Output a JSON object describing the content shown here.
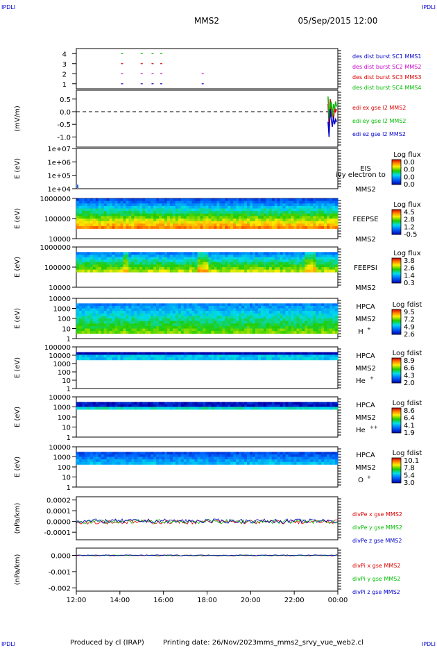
{
  "header": {
    "corner_tl": "IPDLI",
    "corner_tr": "IPDLI",
    "corner_bl": "IPDLI",
    "corner_br": "IPDLI",
    "spacecraft": "MMS2",
    "datetime": "05/Sep/2015 12:00"
  },
  "footer": {
    "produced_by": "Produced by cl (IRAP)",
    "printing_date": "Printing date: 26/Nov/2023",
    "script_name": "mms_mms2_srvy_vue_web2.cl"
  },
  "colors": {
    "red": "#dd0000",
    "green": "#00bb00",
    "blue": "#0000cc",
    "magenta": "#cc00cc"
  },
  "chart_data": [
    {
      "type": "scatter",
      "id": "des-dist-burst",
      "yticks": [
        "1",
        "2",
        "3",
        "4"
      ],
      "ylim": [
        0.5,
        4.5
      ],
      "series": [
        {
          "name": "des dist burst SC1 MMS1",
          "color": "#0000cc",
          "y": 1,
          "x": [
            14.1,
            15.0,
            15.5,
            15.9,
            17.8
          ]
        },
        {
          "name": "des dist burst SC2 MMS2",
          "color": "#cc00cc",
          "y": 2,
          "x": [
            14.1,
            15.0,
            15.5,
            15.9,
            17.8
          ]
        },
        {
          "name": "des dist burst SC3 MMS3",
          "color": "#dd0000",
          "y": 3,
          "x": [
            14.1,
            15.0,
            15.5,
            15.9
          ]
        },
        {
          "name": "des dist burst SC4 MMS4",
          "color": "#00bb00",
          "y": 4,
          "x": [
            14.1,
            15.0,
            15.5,
            15.9
          ]
        }
      ]
    },
    {
      "type": "line",
      "id": "edi-e",
      "ylabel": "(mV/m)",
      "yticks": [
        "0.5",
        "0.0",
        "-0.5",
        "-1.0"
      ],
      "ytick_values": [
        0.5,
        0.0,
        -0.5,
        -1.0
      ],
      "ylim": [
        -1.4,
        0.85
      ],
      "series": [
        {
          "name": "edi ex gse l2 MMS2",
          "color": "#dd0000",
          "x": [
            23.55,
            23.6,
            23.65,
            23.7,
            23.75,
            23.8,
            23.85,
            23.9,
            23.95
          ],
          "y": [
            0.3,
            -0.6,
            0.5,
            -0.2,
            0.1,
            -0.4,
            0.2,
            0.0,
            0.1
          ]
        },
        {
          "name": "edi ey gse l2 MMS2",
          "color": "#00bb00",
          "x": [
            23.55,
            23.6,
            23.65,
            23.7,
            23.75,
            23.8,
            23.85,
            23.9,
            23.95
          ],
          "y": [
            0.6,
            -0.3,
            0.2,
            0.4,
            -0.2,
            0.3,
            0.1,
            0.4,
            0.2
          ]
        },
        {
          "name": "edi ez gse l2 MMS2",
          "color": "#0000cc",
          "x": [
            23.55,
            23.6,
            23.65,
            23.7,
            23.75,
            23.8,
            23.85,
            23.9,
            23.95
          ],
          "y": [
            -0.4,
            -1.0,
            0.1,
            -0.3,
            -0.6,
            -0.2,
            -0.5,
            -0.3,
            -0.4
          ]
        }
      ]
    },
    {
      "type": "heatmap",
      "id": "eis",
      "ylabel": "E (eV)",
      "yticks": [
        "1e+07",
        "1e+06",
        "1e+05",
        "1e+04"
      ],
      "instrument": [
        "EIS",
        "MMS2"
      ],
      "overlay_text": "ivy electron to",
      "colorbar": {
        "title": "Log flux",
        "ticks": [
          "0.0",
          "0.0",
          "0.0",
          "0.0"
        ]
      }
    },
    {
      "type": "heatmap",
      "id": "feepse",
      "ylabel": "E (eV)",
      "yticks": [
        "1000000",
        "100000",
        "10000"
      ],
      "instrument": [
        "FEEPSE",
        "MMS2"
      ],
      "colorbar": {
        "title": "Log flux",
        "ticks": [
          "4.5",
          "2.8",
          "1.2",
          "-0.5"
        ]
      }
    },
    {
      "type": "heatmap",
      "id": "feepsi",
      "ylabel": "E (eV)",
      "yticks": [
        "1000000",
        "100000",
        "10000"
      ],
      "instrument": [
        "FEEPSI",
        "MMS2"
      ],
      "colorbar": {
        "title": "Log flux",
        "ticks": [
          "3.8",
          "2.6",
          "1.4",
          "0.3"
        ]
      }
    },
    {
      "type": "heatmap",
      "id": "hpca-h",
      "ylabel": "E (eV)",
      "yticks": [
        "10000",
        "1000",
        "100",
        "10",
        "1"
      ],
      "instrument": [
        "HPCA",
        "MMS2"
      ],
      "species": "H",
      "species_sup": "+",
      "colorbar": {
        "title": "Log fdist",
        "ticks": [
          "9.5",
          "7.2",
          "4.9",
          "2.6"
        ]
      }
    },
    {
      "type": "heatmap",
      "id": "hpca-he1",
      "ylabel": "E (eV)",
      "yticks": [
        "100000",
        "10000",
        "1000",
        "100",
        "10",
        "1"
      ],
      "instrument": [
        "HPCA",
        "MMS2"
      ],
      "species": "He",
      "species_sup": "+",
      "colorbar": {
        "title": "Log fdist",
        "ticks": [
          "8.9",
          "6.6",
          "4.3",
          "2.0"
        ]
      }
    },
    {
      "type": "heatmap",
      "id": "hpca-he2",
      "ylabel": "E (eV)",
      "yticks": [
        "10000",
        "1000",
        "100",
        "10",
        "1"
      ],
      "instrument": [
        "HPCA",
        "MMS2"
      ],
      "species": "He",
      "species_sup": "++",
      "colorbar": {
        "title": "Log fdist",
        "ticks": [
          "8.6",
          "6.4",
          "4.1",
          "1.9"
        ]
      }
    },
    {
      "type": "heatmap",
      "id": "hpca-o",
      "ylabel": "E (eV)",
      "yticks": [
        "10000",
        "1000",
        "100",
        "10",
        "1"
      ],
      "instrument": [
        "HPCA",
        "MMS2"
      ],
      "species": "O",
      "species_sup": "+",
      "colorbar": {
        "title": "Log fdist",
        "ticks": [
          "10.1",
          "7.8",
          "5.4",
          "3.0"
        ]
      }
    },
    {
      "type": "line",
      "id": "divpe",
      "ylabel": "(nPa/km)",
      "yticks": [
        "0.0002",
        "0.0001",
        "0.0000",
        "-0.0001"
      ],
      "ytick_values": [
        0.0002,
        0.0001,
        0.0,
        -0.0001
      ],
      "ylim": [
        -0.00017,
        0.00023
      ],
      "series": [
        {
          "name": "divPe x gse MMS2",
          "color": "#dd0000"
        },
        {
          "name": "divPe y gse MMS2",
          "color": "#00bb00"
        },
        {
          "name": "divPe z gse MMS2",
          "color": "#0000cc"
        }
      ]
    },
    {
      "type": "line",
      "id": "divpi",
      "ylabel": "(nPa/km)",
      "yticks": [
        "0.000",
        "-0.001",
        "-0.002"
      ],
      "ytick_values": [
        0.0,
        -0.001,
        -0.002
      ],
      "ylim": [
        -0.0022,
        0.00045
      ],
      "series": [
        {
          "name": "divPi x gse MMS2",
          "color": "#dd0000"
        },
        {
          "name": "divPi y gse MMS2",
          "color": "#00bb00"
        },
        {
          "name": "divPi z gse MMS2",
          "color": "#0000cc"
        }
      ]
    }
  ],
  "x_axis": {
    "ticks": [
      "12:00",
      "14:00",
      "16:00",
      "18:00",
      "20:00",
      "22:00",
      "00:00"
    ],
    "range_hours": [
      12,
      24
    ]
  }
}
